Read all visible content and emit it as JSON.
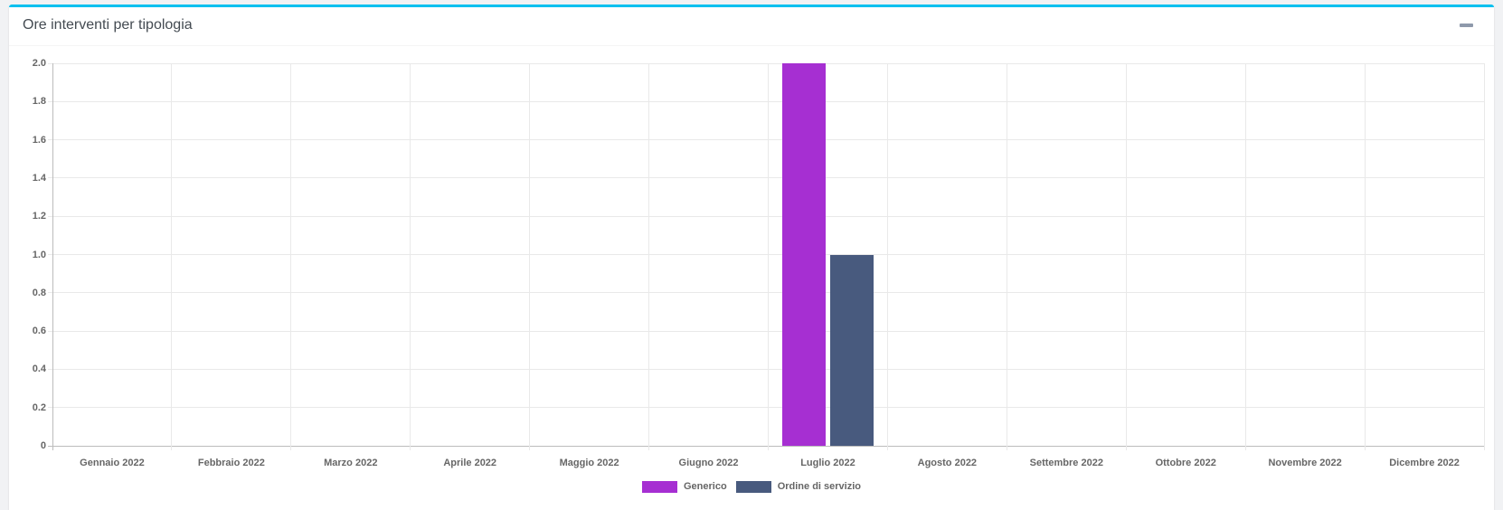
{
  "panel": {
    "title": "Ore interventi per tipologia",
    "accent_color": "#00c0ef",
    "collapse_icon": "minus-icon"
  },
  "chart_data": {
    "type": "bar",
    "title": "Ore interventi per tipologia",
    "categories": [
      "Gennaio 2022",
      "Febbraio 2022",
      "Marzo 2022",
      "Aprile 2022",
      "Maggio 2022",
      "Giugno 2022",
      "Luglio 2022",
      "Agosto 2022",
      "Settembre 2022",
      "Ottobre 2022",
      "Novembre 2022",
      "Dicembre 2022"
    ],
    "series": [
      {
        "name": "Generico",
        "color": "#a62fd2",
        "values": [
          0,
          0,
          0,
          0,
          0,
          0,
          2,
          0,
          0,
          0,
          0,
          0
        ]
      },
      {
        "name": "Ordine di servizio",
        "color": "#485a7e",
        "values": [
          0,
          0,
          0,
          0,
          0,
          0,
          1,
          0,
          0,
          0,
          0,
          0
        ]
      }
    ],
    "ylim": [
      0,
      2
    ],
    "ytick_step": 0.2,
    "ytick_labels": [
      "0",
      "0.2",
      "0.4",
      "0.6",
      "0.8",
      "1.0",
      "1.2",
      "1.4",
      "1.6",
      "1.8",
      "2.0"
    ],
    "xlabel": "",
    "ylabel": "",
    "grid": true,
    "legend_position": "bottom",
    "grid_color": "#e9e9e9",
    "axis_color": "#bcbcbc",
    "tick_text_color": "#666666"
  }
}
